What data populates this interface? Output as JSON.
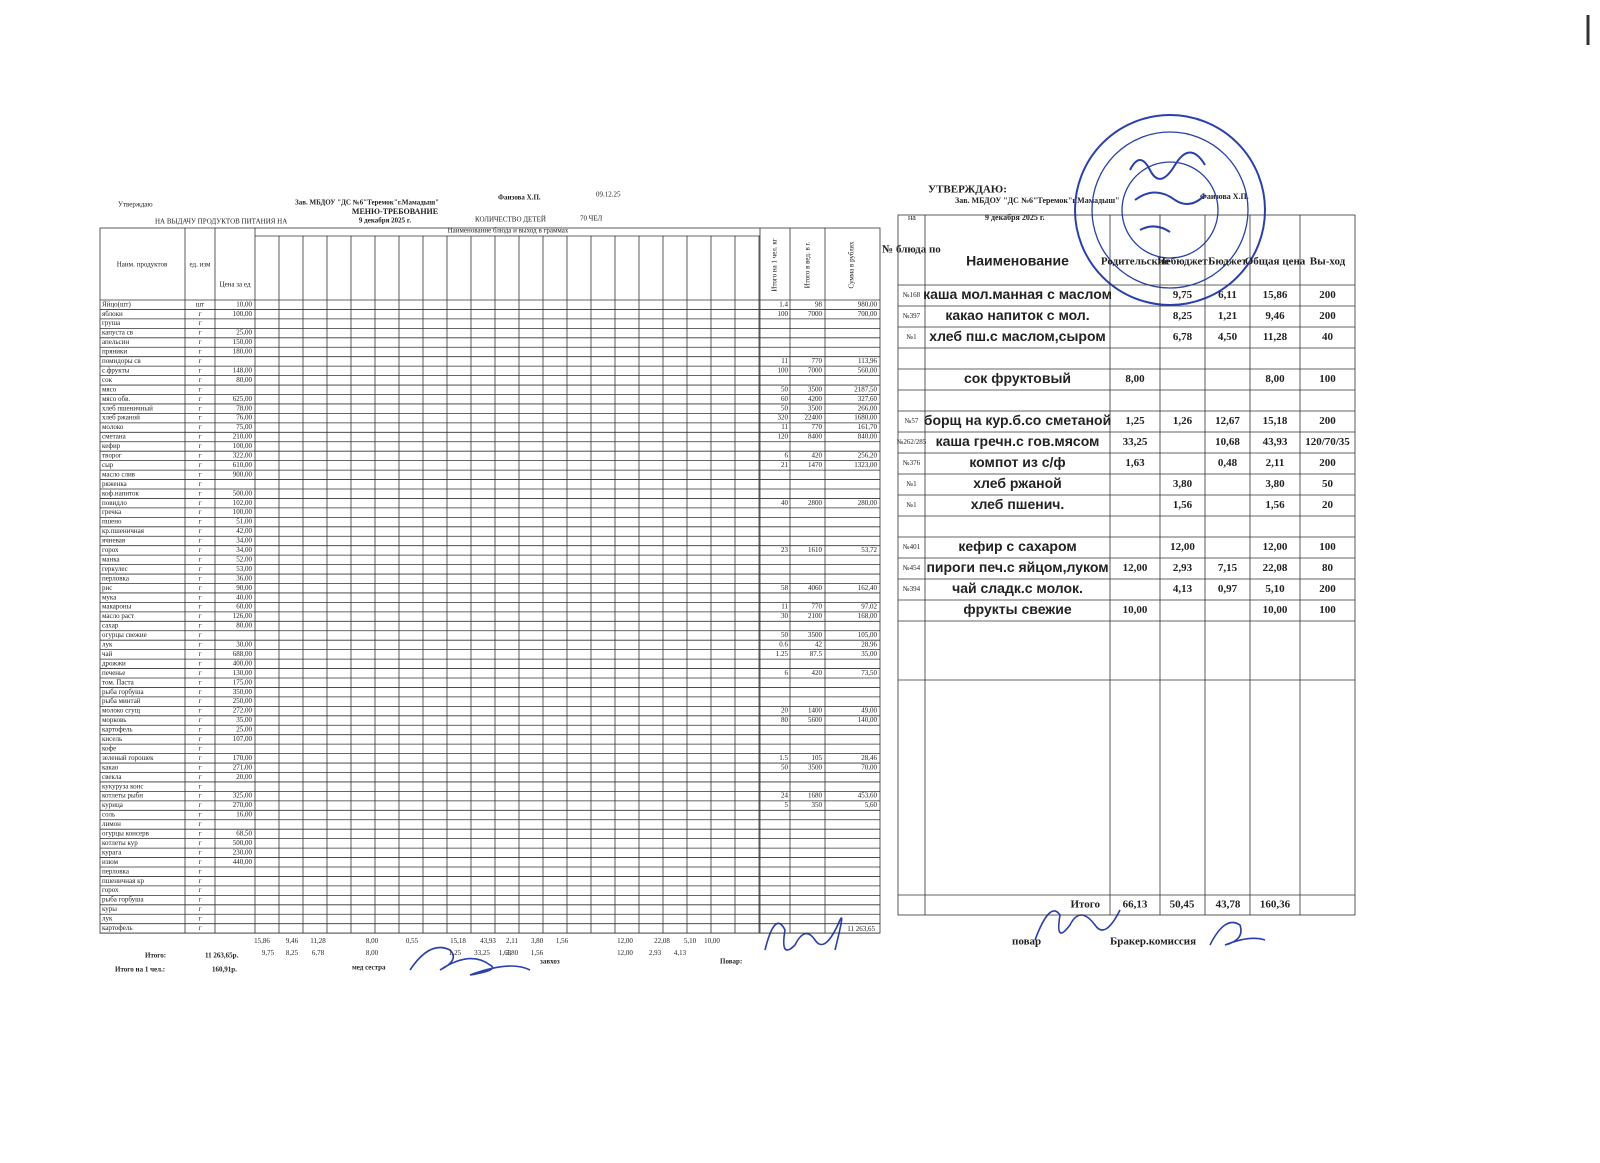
{
  "left_header": {
    "approve": "Утверждаю",
    "head": "Зав. МБДОУ \"ДС №6\"Теремок\"г.Мамадыш\"",
    "person": "Фаизова Х.П.",
    "date_short": "09.12.25",
    "title": "МЕНЮ-ТРЕБОВАНИЕ",
    "issue": "НА ВЫДАЧУ ПРОДУКТОВ ПИТАНИЯ НА",
    "date": "9 декабря 2025 г.",
    "children_label": "КОЛИЧЕСТВО ДЕТЕЙ",
    "children": "70 ЧЕЛ"
  },
  "left_table": {
    "columns": [
      "Наим. продуктов",
      "ед. изм",
      "Цена за ед",
      "Наименование блюда и выход в граммах",
      "Итого на 1 чел. кг",
      "Итого в вед. в г.",
      "Сумма в рублях"
    ],
    "rows": [
      [
        "Яйцо(шт)",
        "шт",
        "10,00",
        "1.4",
        "98",
        "980,00"
      ],
      [
        "яблоки",
        "г",
        "100,00",
        "100",
        "7000",
        "700,00"
      ],
      [
        "груша",
        "г",
        null,
        null,
        null,
        null
      ],
      [
        "капуста св",
        "г",
        "25,00",
        null,
        null,
        null
      ],
      [
        "апельсин",
        "г",
        "150,00",
        null,
        null,
        null
      ],
      [
        "пряники",
        "г",
        "180,00",
        null,
        null,
        null
      ],
      [
        "помидоры св",
        "г",
        null,
        "11",
        "770",
        "113,96"
      ],
      [
        "с.фрукты",
        "г",
        "148,00",
        "100",
        "7000",
        "560,00"
      ],
      [
        "сок",
        "г",
        "80,00",
        null,
        null,
        null
      ],
      [
        "мясо",
        "г",
        null,
        "50",
        "3500",
        "2187,50"
      ],
      [
        "мясо обв.",
        "г",
        "625,00",
        "60",
        "4200",
        "327,60"
      ],
      [
        "хлеб пшеничный",
        "г",
        "78,00",
        "50",
        "3500",
        "266,00"
      ],
      [
        "хлеб ржаной",
        "г",
        "76,00",
        "320",
        "22400",
        "1680,00"
      ],
      [
        "молоко",
        "г",
        "75,00",
        "11",
        "770",
        "161,70"
      ],
      [
        "сметана",
        "г",
        "210,00",
        "120",
        "8400",
        "840,00"
      ],
      [
        "кефир",
        "г",
        "100,00",
        null,
        null,
        null
      ],
      [
        "творог",
        "г",
        "322,00",
        "6",
        "420",
        "256,20"
      ],
      [
        "сыр",
        "г",
        "610,00",
        "21",
        "1470",
        "1323,00"
      ],
      [
        "масло слив",
        "г",
        "900,00",
        null,
        null,
        null
      ],
      [
        "ряженка",
        "г",
        null,
        null,
        null,
        null
      ],
      [
        "коф.напиток",
        "г",
        "500,00",
        null,
        null,
        null
      ],
      [
        "повидло",
        "г",
        "102,00",
        "40",
        "2800",
        "280,00"
      ],
      [
        "гречка",
        "г",
        "100,00",
        null,
        null,
        null
      ],
      [
        "пшено",
        "г",
        "51,00",
        null,
        null,
        null
      ],
      [
        "кр.пшеничная",
        "г",
        "42,00",
        null,
        null,
        null
      ],
      [
        "ячневая",
        "г",
        "34,00",
        null,
        null,
        null
      ],
      [
        "горох",
        "г",
        "34,00",
        "23",
        "1610",
        "53,72"
      ],
      [
        "манка",
        "г",
        "52,00",
        null,
        null,
        null
      ],
      [
        "геркулес",
        "г",
        "53,00",
        null,
        null,
        null
      ],
      [
        "перловка",
        "г",
        "36,00",
        null,
        null,
        null
      ],
      [
        "рис",
        "г",
        "90,00",
        "58",
        "4060",
        "162,40"
      ],
      [
        "мука",
        "г",
        "40,00",
        null,
        null,
        null
      ],
      [
        "макароны",
        "г",
        "60,00",
        "11",
        "770",
        "97,02"
      ],
      [
        "масло раст",
        "г",
        "126,00",
        "30",
        "2100",
        "168,00"
      ],
      [
        "сахар",
        "г",
        "80,00",
        null,
        null,
        null
      ],
      [
        "огурцы свежие",
        "г",
        null,
        "50",
        "3500",
        "105,00"
      ],
      [
        "лук",
        "г",
        "30,00",
        "0.6",
        "42",
        "28,96"
      ],
      [
        "чай",
        "г",
        "688,00",
        "1.25",
        "87.5",
        "35,00"
      ],
      [
        "дрожжи",
        "г",
        "400,00",
        null,
        null,
        null
      ],
      [
        "печенье",
        "г",
        "130,00",
        "6",
        "420",
        "73,50"
      ],
      [
        "том. Паста",
        "г",
        "175,00",
        null,
        null,
        null
      ],
      [
        "рыба горбуша",
        "г",
        "350,00",
        null,
        null,
        null
      ],
      [
        "рыба минтай",
        "г",
        "250,00",
        null,
        null,
        null
      ],
      [
        "молоко сгущ",
        "г",
        "272,00",
        "20",
        "1400",
        "49,00"
      ],
      [
        "морковь",
        "г",
        "35,00",
        "80",
        "5600",
        "140,00"
      ],
      [
        "картофель",
        "г",
        "25,00",
        null,
        null,
        null
      ],
      [
        "кисель",
        "г",
        "107,00",
        null,
        null,
        null
      ],
      [
        "кофе",
        "г",
        null,
        null,
        null,
        null
      ],
      [
        "зеленый горошек",
        "г",
        "170,00",
        "1.5",
        "105",
        "28,46"
      ],
      [
        "какао",
        "г",
        "271,00",
        "50",
        "3500",
        "70,00"
      ],
      [
        "свекла",
        "г",
        "20,00",
        null,
        null,
        null
      ],
      [
        "кукуруза конс",
        "г",
        null,
        null,
        null,
        null
      ],
      [
        "котлеты рыбн",
        "г",
        "325,00",
        "24",
        "1680",
        "453,60"
      ],
      [
        "курица",
        "г",
        "270,00",
        "5",
        "350",
        "5,60"
      ],
      [
        "соль",
        "г",
        "16,00",
        null,
        null,
        null
      ],
      [
        "лимон",
        "г",
        null,
        null,
        null,
        null
      ],
      [
        "огурцы консерв",
        "г",
        "68,50",
        null,
        null,
        null
      ],
      [
        "котлеты кур",
        "г",
        "500,00",
        null,
        null,
        null
      ],
      [
        "курага",
        "г",
        "230,00",
        null,
        null,
        null
      ],
      [
        "изюм",
        "г",
        "440,00",
        null,
        null,
        null
      ],
      [
        "перловка",
        "г",
        null,
        null,
        null,
        null
      ],
      [
        "пшеничная кр",
        "г",
        null,
        null,
        null,
        null
      ],
      [
        "горох",
        "г",
        null,
        null,
        null,
        null
      ],
      [
        "рыба горбуша",
        "г",
        null,
        null,
        null,
        null
      ],
      [
        "куры",
        "г",
        null,
        null,
        null,
        null
      ],
      [
        "лук",
        "г",
        null,
        null,
        null,
        null
      ],
      [
        "картофель",
        "г",
        null,
        null,
        null,
        null
      ]
    ],
    "dish_totals": [
      "15,86",
      "9,46",
      "11,28",
      "8,00",
      "0,55",
      "15,18",
      "43,93",
      "2,11",
      "3,80",
      "1,56",
      "12,00",
      "22,08",
      "5,10",
      "10,00"
    ],
    "dish_parts": [
      "9,75",
      "8,25",
      "6,78",
      "8,00",
      "1,25",
      "33,25",
      "1,63",
      "3,80",
      "1,56",
      "12,00",
      "2,93",
      "4,13"
    ],
    "grand_total": "11 263,65"
  },
  "left_footer": {
    "total_label": "Итого:",
    "total": "11 263,65р.",
    "per_label": "Итого на 1 чел.:",
    "per": "160,91р.",
    "nurse": "мед сестра",
    "supply": "завхоз",
    "cook": "Повар:"
  },
  "right_header": {
    "approve": "УТВЕРЖДАЮ:",
    "head": "Зав. МБДОУ \"ДС №6\"Теремок\"г.Мамадыш\"",
    "person": "Фаизова Х.П.",
    "on": "на",
    "date": "9 декабря 2025 г."
  },
  "right_table": {
    "columns": [
      "№ блюда по",
      "Наименование",
      "Родительские",
      "Небюджет",
      "Бюджет",
      "Общая цена",
      "Вы-ход"
    ],
    "rows": [
      [
        "№168",
        "каша мол.манная с маслом",
        null,
        "9,75",
        "6,11",
        "15,86",
        "200"
      ],
      [
        "№397",
        "какао напиток с мол.",
        null,
        "8,25",
        "1,21",
        "9,46",
        "200"
      ],
      [
        "№1",
        "хлеб пш.с маслом,сыром",
        null,
        "6,78",
        "4,50",
        "11,28",
        "40"
      ],
      null,
      [
        null,
        "сок фруктовый",
        "8,00",
        null,
        null,
        "8,00",
        "100"
      ],
      null,
      [
        "№57",
        "борщ на кур.б.со сметаной",
        "1,25",
        "1,26",
        "12,67",
        "15,18",
        "200"
      ],
      [
        "№262/285",
        "каша гречн.с гов.мясом",
        "33,25",
        null,
        "10,68",
        "43,93",
        "120/70/35"
      ],
      [
        "№376",
        "компот из с/ф",
        "1,63",
        null,
        "0,48",
        "2,11",
        "200"
      ],
      [
        "№1",
        "хлеб ржаной",
        null,
        "3,80",
        null,
        "3,80",
        "50"
      ],
      [
        "№1",
        "хлеб пшенич.",
        null,
        "1,56",
        null,
        "1,56",
        "20"
      ],
      null,
      [
        "№401",
        "кефир с сахаром",
        null,
        "12,00",
        null,
        "12,00",
        "100"
      ],
      [
        "№454",
        "пироги печ.с яйцом,луком",
        "12,00",
        "2,93",
        "7,15",
        "22,08",
        "80"
      ],
      [
        "№394",
        "чай сладк.с молок.",
        null,
        "4,13",
        "0,97",
        "5,10",
        "200"
      ],
      [
        null,
        "фрукты свежие",
        "10,00",
        null,
        null,
        "10,00",
        "100"
      ]
    ],
    "total": [
      "Итого",
      "66,13",
      "50,45",
      "43,78",
      "160,36"
    ]
  },
  "right_footer": {
    "cook": "повар",
    "commission": "Бракер.комиссия"
  }
}
